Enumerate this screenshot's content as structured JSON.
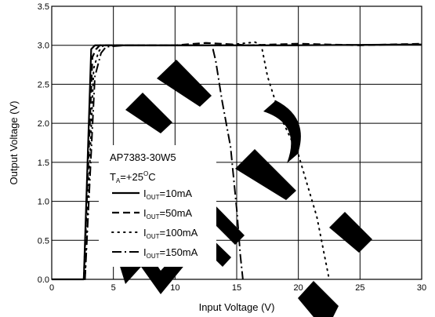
{
  "chart_data": {
    "type": "line",
    "xlabel": "Input Voltage (V)",
    "ylabel": "Output Voltage (V)",
    "xlim": [
      0,
      30
    ],
    "ylim": [
      0,
      3.5
    ],
    "x_ticks": [
      "0",
      "5",
      "10",
      "15",
      "20",
      "25",
      "30"
    ],
    "y_ticks": [
      "0.0",
      "0.5",
      "1.0",
      "1.5",
      "2.0",
      "2.5",
      "3.0",
      "3.5"
    ],
    "grid": true,
    "legend_placement": "bottom-left",
    "annotation": {
      "part": "AP7383-30W5",
      "temp_prefix": "T",
      "temp_sub": "A",
      "temp_value": "=+25",
      "temp_sup": "O",
      "temp_unit": "C"
    },
    "series": [
      {
        "legend_prefix": "I",
        "legend_sub": "OUT",
        "legend_value": "=10mA",
        "dash": "solid",
        "x": [
          0,
          2.6,
          3.2,
          3.5,
          4,
          10,
          20,
          30
        ],
        "y": [
          0,
          0,
          2.95,
          3.0,
          3.0,
          3.0,
          3.0,
          3.01
        ]
      },
      {
        "legend_prefix": "I",
        "legend_sub": "OUT",
        "legend_value": "=50mA",
        "dash": "dashed",
        "x": [
          2.6,
          3.3,
          3.6,
          3.9,
          5,
          10,
          12.5,
          16,
          20,
          25,
          30
        ],
        "y": [
          0,
          2.85,
          2.95,
          3.0,
          3.0,
          3.0,
          3.03,
          3.0,
          3.02,
          3.0,
          3.02
        ],
        "curve_tension": 0.5
      },
      {
        "legend_prefix": "I",
        "legend_sub": "OUT",
        "legend_value": "=100mA",
        "dash": "dotted",
        "x": [
          2.7,
          3.4,
          3.8,
          4.2,
          6,
          10,
          14,
          16.5,
          17,
          17.5,
          18.5,
          20,
          21.5,
          22.5
        ],
        "y": [
          0,
          2.7,
          2.92,
          3.0,
          3.0,
          3.0,
          3.0,
          3.04,
          3.0,
          2.6,
          2.1,
          1.6,
          0.8,
          0
        ],
        "curve_tension": 0.5
      },
      {
        "legend_prefix": "I",
        "legend_sub": "OUT",
        "legend_value": "=150mA",
        "dash": "dashdot",
        "x": [
          2.7,
          3.5,
          4.0,
          4.4,
          6,
          10,
          13,
          13.3,
          13.8,
          14.5,
          15.0,
          15.3,
          15.5
        ],
        "y": [
          0,
          2.6,
          2.9,
          2.98,
          3.0,
          3.0,
          3.0,
          2.8,
          2.3,
          1.7,
          0.9,
          0.3,
          0
        ],
        "curve_tension": 0.5
      }
    ]
  },
  "colors": {
    "line": "#000000",
    "grid": "#000000",
    "frame": "#000000",
    "watermark": "#000000"
  }
}
